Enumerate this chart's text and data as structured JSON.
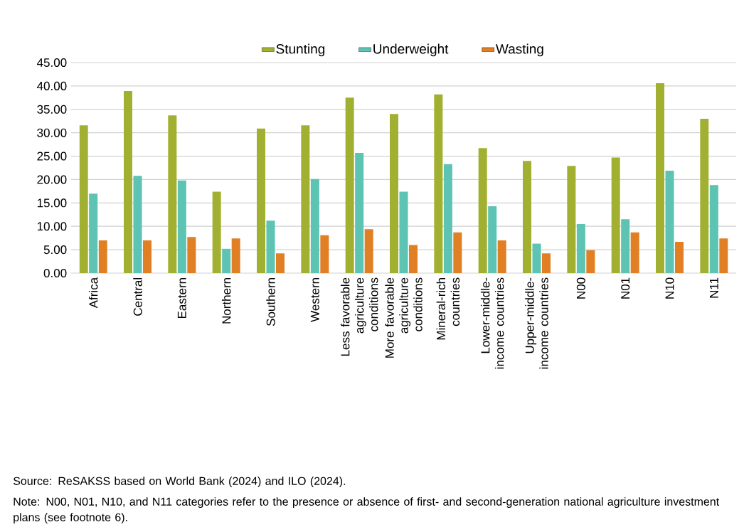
{
  "chart_data": {
    "type": "bar",
    "categories": [
      "Africa",
      "Central",
      "Eastern",
      "Northern",
      "Southern",
      "Western",
      "Less favorable agriculture conditions",
      "More favorable agriculture conditions",
      "Mineral-rich countries",
      "Lower-middle-income countries",
      "Upper-middle-income countries",
      "N00",
      "N01",
      "N10",
      "N11"
    ],
    "series": [
      {
        "name": "Stunting",
        "color": "#a2b032",
        "values": [
          31.6,
          38.9,
          33.7,
          17.4,
          30.9,
          31.6,
          37.5,
          34.0,
          38.2,
          26.7,
          24.0,
          22.9,
          24.7,
          40.6,
          33.0
        ]
      },
      {
        "name": "Underweight",
        "color": "#5dc3b3",
        "values": [
          17.0,
          20.8,
          19.8,
          5.2,
          11.2,
          20.1,
          25.7,
          17.4,
          23.3,
          14.3,
          6.3,
          10.5,
          11.5,
          21.9,
          18.8
        ]
      },
      {
        "name": "Wasting",
        "color": "#e07f23",
        "values": [
          7.0,
          7.0,
          7.7,
          7.4,
          4.2,
          8.1,
          9.4,
          6.0,
          8.7,
          7.0,
          4.2,
          4.9,
          8.7,
          6.7,
          7.4
        ]
      }
    ],
    "ylim": [
      0,
      45
    ],
    "yticks": [
      {
        "value": 0,
        "label": "0.00"
      },
      {
        "value": 5,
        "label": "5.00"
      },
      {
        "value": 10,
        "label": "10.00"
      },
      {
        "value": 15,
        "label": "15.00"
      },
      {
        "value": 20,
        "label": "20.00"
      },
      {
        "value": 25,
        "label": "25.00"
      },
      {
        "value": 30,
        "label": "30.00"
      },
      {
        "value": 35,
        "label": "35.00"
      },
      {
        "value": 40,
        "label": "40.00"
      },
      {
        "value": 45,
        "label": "45.00"
      }
    ],
    "grid": "y",
    "legend": "top",
    "annotations": [
      "Source: ReSAKSS based on World Bank (2024) and ILO (2024).",
      "Note: N00, N01, N10, and N11 categories refer to the presence or absence of first- and second-generation national agriculture investment plans (see footnote 6)."
    ]
  }
}
